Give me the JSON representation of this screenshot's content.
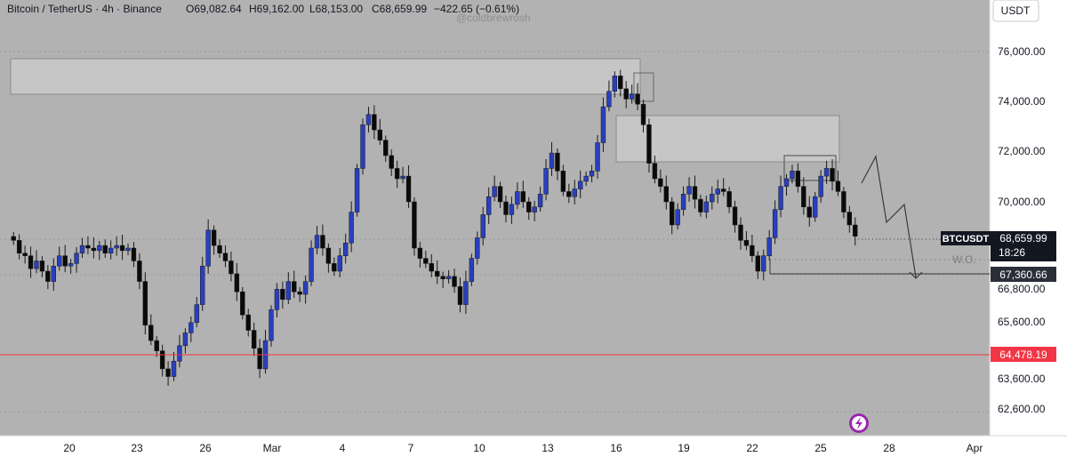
{
  "header": {
    "symbol": "Bitcoin / TetherUS · 4h · Binance",
    "open": "O69,082.64",
    "high": "H69,162.00",
    "low": "L68,153.00",
    "close": "C68,659.99",
    "change": "−422.65 (−0.61%)",
    "watermark": "@coldbrewrosh"
  },
  "currency_button": "USDT",
  "colors": {
    "background": "#b2b2b2",
    "bull": "#2a3fbf",
    "bear": "#0a0a0a",
    "zone": "#c6c6c6",
    "support_line": "#f23645",
    "label_red": "#f23645",
    "label_dark": "#131722"
  },
  "chart_data": {
    "type": "candlestick",
    "price_axis": {
      "ticks": [
        "76,000.00",
        "74,000.00",
        "72,000.00",
        "70,000.00",
        "66,800.00",
        "65,600.00",
        "63,600.00",
        "62,600.00"
      ],
      "range": [
        62000,
        76500
      ]
    },
    "date_axis": {
      "ticks": [
        "20",
        "23",
        "26",
        "Mar",
        "4",
        "7",
        "10",
        "13",
        "16",
        "19",
        "22",
        "25",
        "28",
        "Apr"
      ]
    },
    "price_labels": {
      "symbol": "BTCUSDT",
      "last_price": "68,659.99",
      "countdown": "18:26",
      "target_price": "67,360.66",
      "support_price": "64,478.19"
    },
    "annotation_text": "W.O.",
    "series": [
      {
        "x": 0,
        "y": 68500
      },
      {
        "x": 0.15,
        "y": 68000
      },
      {
        "x": 0.3,
        "y": 67900
      },
      {
        "x": 0.45,
        "y": 67400
      },
      {
        "x": 0.6,
        "y": 67700
      },
      {
        "x": 0.75,
        "y": 67300
      },
      {
        "x": 0.9,
        "y": 66900
      },
      {
        "x": 1.05,
        "y": 67500
      },
      {
        "x": 1.2,
        "y": 67900
      },
      {
        "x": 1.35,
        "y": 67500
      },
      {
        "x": 1.5,
        "y": 67600
      },
      {
        "x": 1.65,
        "y": 68000
      },
      {
        "x": 1.8,
        "y": 68300
      },
      {
        "x": 1.95,
        "y": 68200
      },
      {
        "x": 2.1,
        "y": 68100
      },
      {
        "x": 2.25,
        "y": 68300
      },
      {
        "x": 2.4,
        "y": 68000
      },
      {
        "x": 2.55,
        "y": 68200
      },
      {
        "x": 2.7,
        "y": 68300
      },
      {
        "x": 2.85,
        "y": 68100
      },
      {
        "x": 3.0,
        "y": 68200
      },
      {
        "x": 3.15,
        "y": 67700
      },
      {
        "x": 3.3,
        "y": 66900
      },
      {
        "x": 3.45,
        "y": 65200
      },
      {
        "x": 3.6,
        "y": 64600
      },
      {
        "x": 3.75,
        "y": 64200
      },
      {
        "x": 3.9,
        "y": 63500
      },
      {
        "x": 4.05,
        "y": 63200
      },
      {
        "x": 4.2,
        "y": 63800
      },
      {
        "x": 4.35,
        "y": 64400
      },
      {
        "x": 4.5,
        "y": 64900
      },
      {
        "x": 4.65,
        "y": 65300
      },
      {
        "x": 4.8,
        "y": 66000
      },
      {
        "x": 4.95,
        "y": 67500
      },
      {
        "x": 5.1,
        "y": 68900
      },
      {
        "x": 5.25,
        "y": 68300
      },
      {
        "x": 5.4,
        "y": 68000
      },
      {
        "x": 5.55,
        "y": 67700
      },
      {
        "x": 5.7,
        "y": 67200
      },
      {
        "x": 5.85,
        "y": 66500
      },
      {
        "x": 6.0,
        "y": 65600
      },
      {
        "x": 6.15,
        "y": 65000
      },
      {
        "x": 6.3,
        "y": 64300
      },
      {
        "x": 6.45,
        "y": 63500
      },
      {
        "x": 6.6,
        "y": 64600
      },
      {
        "x": 6.75,
        "y": 65800
      },
      {
        "x": 6.9,
        "y": 66600
      },
      {
        "x": 7.05,
        "y": 66200
      },
      {
        "x": 7.2,
        "y": 66900
      },
      {
        "x": 7.35,
        "y": 66500
      },
      {
        "x": 7.5,
        "y": 66400
      },
      {
        "x": 7.65,
        "y": 66900
      },
      {
        "x": 7.8,
        "y": 68200
      },
      {
        "x": 7.95,
        "y": 68700
      },
      {
        "x": 8.1,
        "y": 68200
      },
      {
        "x": 8.25,
        "y": 67600
      },
      {
        "x": 8.4,
        "y": 67300
      },
      {
        "x": 8.55,
        "y": 67900
      },
      {
        "x": 8.7,
        "y": 68400
      },
      {
        "x": 8.85,
        "y": 69600
      },
      {
        "x": 9.0,
        "y": 71300
      },
      {
        "x": 9.15,
        "y": 73000
      },
      {
        "x": 9.3,
        "y": 73400
      },
      {
        "x": 9.45,
        "y": 72800
      },
      {
        "x": 9.6,
        "y": 72400
      },
      {
        "x": 9.75,
        "y": 71800
      },
      {
        "x": 9.9,
        "y": 71300
      },
      {
        "x": 10.05,
        "y": 70900
      },
      {
        "x": 10.2,
        "y": 71000
      },
      {
        "x": 10.35,
        "y": 70000
      },
      {
        "x": 10.5,
        "y": 68200
      },
      {
        "x": 10.65,
        "y": 67800
      },
      {
        "x": 10.8,
        "y": 67600
      },
      {
        "x": 10.95,
        "y": 67300
      },
      {
        "x": 11.1,
        "y": 67100
      },
      {
        "x": 11.25,
        "y": 67000
      },
      {
        "x": 11.4,
        "y": 67100
      },
      {
        "x": 11.55,
        "y": 66700
      },
      {
        "x": 11.7,
        "y": 66000
      },
      {
        "x": 11.85,
        "y": 66900
      },
      {
        "x": 12.0,
        "y": 67800
      },
      {
        "x": 12.15,
        "y": 68600
      },
      {
        "x": 12.3,
        "y": 69500
      },
      {
        "x": 12.45,
        "y": 70200
      },
      {
        "x": 12.6,
        "y": 70600
      },
      {
        "x": 12.75,
        "y": 70000
      },
      {
        "x": 12.9,
        "y": 69500
      },
      {
        "x": 13.05,
        "y": 69900
      },
      {
        "x": 13.2,
        "y": 70400
      },
      {
        "x": 13.35,
        "y": 70000
      },
      {
        "x": 13.5,
        "y": 69600
      },
      {
        "x": 13.65,
        "y": 69800
      },
      {
        "x": 13.8,
        "y": 70300
      },
      {
        "x": 13.95,
        "y": 71300
      },
      {
        "x": 14.1,
        "y": 71900
      },
      {
        "x": 14.25,
        "y": 71200
      },
      {
        "x": 14.4,
        "y": 70400
      },
      {
        "x": 14.55,
        "y": 70200
      },
      {
        "x": 14.7,
        "y": 70500
      },
      {
        "x": 14.85,
        "y": 70800
      },
      {
        "x": 15.0,
        "y": 71000
      },
      {
        "x": 15.15,
        "y": 71200
      },
      {
        "x": 15.3,
        "y": 72300
      },
      {
        "x": 15.45,
        "y": 73700
      },
      {
        "x": 15.6,
        "y": 74300
      },
      {
        "x": 15.75,
        "y": 74900
      },
      {
        "x": 15.9,
        "y": 74400
      },
      {
        "x": 16.05,
        "y": 74000
      },
      {
        "x": 16.2,
        "y": 74200
      },
      {
        "x": 16.35,
        "y": 73800
      },
      {
        "x": 16.5,
        "y": 73000
      },
      {
        "x": 16.65,
        "y": 71500
      },
      {
        "x": 16.8,
        "y": 70900
      },
      {
        "x": 16.95,
        "y": 70600
      },
      {
        "x": 17.1,
        "y": 70000
      },
      {
        "x": 17.25,
        "y": 69100
      },
      {
        "x": 17.4,
        "y": 69700
      },
      {
        "x": 17.55,
        "y": 70300
      },
      {
        "x": 17.7,
        "y": 70600
      },
      {
        "x": 17.85,
        "y": 70100
      },
      {
        "x": 18.0,
        "y": 69600
      },
      {
        "x": 18.15,
        "y": 70000
      },
      {
        "x": 18.3,
        "y": 70300
      },
      {
        "x": 18.45,
        "y": 70500
      },
      {
        "x": 18.6,
        "y": 70400
      },
      {
        "x": 18.75,
        "y": 69800
      },
      {
        "x": 18.9,
        "y": 69100
      },
      {
        "x": 19.05,
        "y": 68500
      },
      {
        "x": 19.2,
        "y": 68300
      },
      {
        "x": 19.35,
        "y": 67900
      },
      {
        "x": 19.5,
        "y": 67300
      },
      {
        "x": 19.65,
        "y": 67900
      },
      {
        "x": 19.8,
        "y": 68600
      },
      {
        "x": 19.95,
        "y": 69700
      },
      {
        "x": 20.1,
        "y": 70600
      },
      {
        "x": 20.25,
        "y": 70900
      },
      {
        "x": 20.4,
        "y": 71200
      },
      {
        "x": 20.55,
        "y": 70600
      },
      {
        "x": 20.7,
        "y": 69800
      },
      {
        "x": 20.85,
        "y": 69400
      },
      {
        "x": 21.0,
        "y": 70200
      },
      {
        "x": 21.15,
        "y": 71000
      },
      {
        "x": 21.3,
        "y": 71300
      },
      {
        "x": 21.45,
        "y": 70800
      },
      {
        "x": 21.6,
        "y": 70400
      },
      {
        "x": 21.75,
        "y": 69600
      },
      {
        "x": 21.9,
        "y": 69100
      },
      {
        "x": 22.05,
        "y": 68660
      }
    ]
  }
}
